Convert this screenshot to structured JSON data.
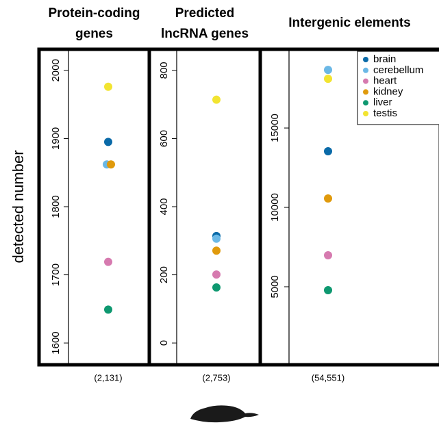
{
  "chart_data": [
    {
      "type": "scatter",
      "title": [
        "Protein-coding",
        "genes"
      ],
      "ylabel": "detected number",
      "note": "(2,131)",
      "ylim": [
        1568,
        2031
      ],
      "yticks": [
        1600,
        1700,
        1800,
        1900,
        2000
      ],
      "series": [
        {
          "name": "brain",
          "color": "#0a6aa8",
          "values": [
            1895
          ]
        },
        {
          "name": "cerebellum",
          "color": "#6bb8e6",
          "values": [
            1862
          ]
        },
        {
          "name": "heart",
          "color": "#d67aaf",
          "values": [
            1719
          ]
        },
        {
          "name": "kidney",
          "color": "#e09a0c",
          "values": [
            1862
          ]
        },
        {
          "name": "liver",
          "color": "#0e9870",
          "values": [
            1649
          ]
        },
        {
          "name": "testis",
          "color": "#f2e431",
          "values": [
            1976
          ]
        }
      ]
    },
    {
      "type": "scatter",
      "title": [
        "Predicted",
        "lncRNA genes"
      ],
      "note": "(2,753)",
      "ylim": [
        -64,
        862
      ],
      "yticks": [
        0,
        200,
        400,
        600,
        800
      ],
      "series": [
        {
          "name": "brain",
          "color": "#0a6aa8",
          "values": [
            314
          ]
        },
        {
          "name": "cerebellum",
          "color": "#6bb8e6",
          "values": [
            306
          ]
        },
        {
          "name": "heart",
          "color": "#d67aaf",
          "values": [
            201
          ]
        },
        {
          "name": "kidney",
          "color": "#e09a0c",
          "values": [
            271
          ]
        },
        {
          "name": "liver",
          "color": "#0e9870",
          "values": [
            163
          ]
        },
        {
          "name": "testis",
          "color": "#f2e431",
          "values": [
            714
          ]
        }
      ]
    },
    {
      "type": "scatter",
      "title": [
        "Intergenic elements"
      ],
      "note": "(54,551)",
      "legend": "top-right",
      "ylim": [
        85,
        19960
      ],
      "yticks": [
        5000,
        10000,
        15000
      ],
      "series": [
        {
          "name": "brain",
          "color": "#0a6aa8",
          "values": [
            13535
          ]
        },
        {
          "name": "cerebellum",
          "color": "#6bb8e6",
          "values": [
            18660
          ]
        },
        {
          "name": "heart",
          "color": "#d67aaf",
          "values": [
            6983
          ]
        },
        {
          "name": "kidney",
          "color": "#e09a0c",
          "values": [
            10560
          ]
        },
        {
          "name": "liver",
          "color": "#0e9870",
          "values": [
            4785
          ]
        },
        {
          "name": "testis",
          "color": "#f2e431",
          "values": [
            18100
          ]
        }
      ]
    }
  ]
}
